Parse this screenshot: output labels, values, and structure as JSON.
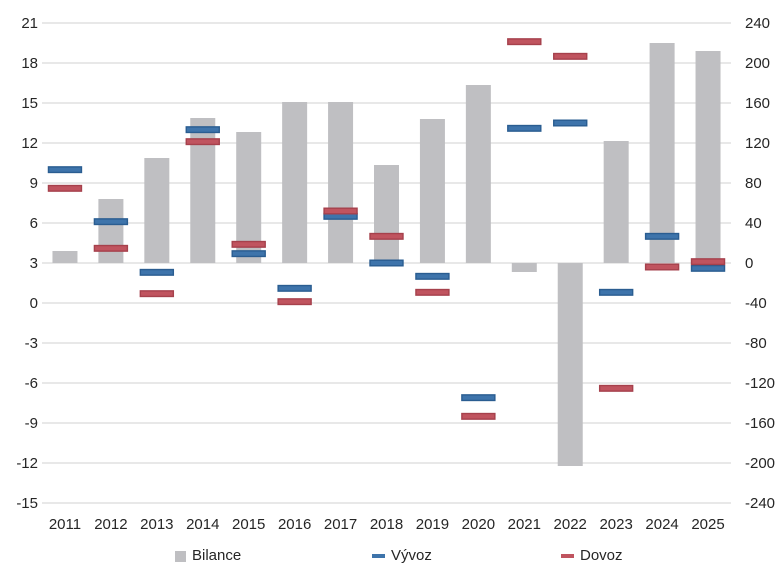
{
  "chart_data": {
    "type": "bar",
    "categories": [
      "2011",
      "2012",
      "2013",
      "2014",
      "2015",
      "2016",
      "2017",
      "2018",
      "2019",
      "2020",
      "2021",
      "2022",
      "2023",
      "2024",
      "2025"
    ],
    "series": [
      {
        "name": "Bilance",
        "type": "bar",
        "axis": "right",
        "color": "#bfbfc2",
        "values": [
          12,
          64,
          105,
          145,
          131,
          161,
          161,
          98,
          144,
          178,
          -9,
          -203,
          122,
          220,
          212
        ]
      },
      {
        "name": "Vývoz",
        "type": "dash-marker",
        "axis": "left",
        "color": "#3e74ab",
        "border_color": "#2a5d91",
        "values": [
          10.0,
          6.1,
          2.3,
          13.0,
          3.7,
          1.1,
          6.5,
          3.0,
          2.0,
          -7.1,
          13.1,
          13.5,
          0.8,
          5.0,
          2.6
        ]
      },
      {
        "name": "Dovoz",
        "type": "dash-marker",
        "axis": "left",
        "color": "#c0545f",
        "border_color": "#a6414c",
        "values": [
          8.6,
          4.1,
          0.7,
          12.1,
          4.4,
          0.1,
          6.9,
          5.0,
          0.8,
          -8.5,
          19.6,
          18.5,
          -6.4,
          2.7,
          3.1
        ]
      }
    ],
    "title": "",
    "xlabel": "",
    "ylabel": "",
    "left_axis": {
      "min": -15,
      "max": 21,
      "step": 3,
      "tick_labels": [
        "21",
        "18",
        "15",
        "12",
        "9",
        "6",
        "3",
        "0",
        "-3",
        "-6",
        "-9",
        "-12",
        "-15"
      ]
    },
    "right_axis": {
      "min": -240,
      "max": 240,
      "step": 40,
      "tick_labels": [
        "240",
        "200",
        "160",
        "120",
        "80",
        "40",
        "0",
        "-40",
        "-80",
        "-120",
        "-160",
        "-200",
        "-240"
      ]
    },
    "grid": true,
    "gridline_color": "#d9d9d9",
    "tick_label_color": "#262626",
    "legend_position": "bottom",
    "legend": [
      "Bilance",
      "Vývoz",
      "Dovoz"
    ]
  }
}
